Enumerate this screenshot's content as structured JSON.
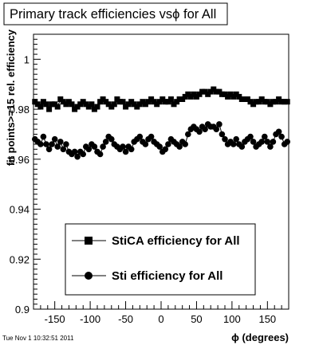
{
  "title": "Primary track efficiencies vsϕ for All",
  "timestamp": "Tue Nov  1 10:32:51 2011",
  "chart_data": {
    "type": "scatter",
    "title": "Primary track efficiencies vsϕ for All",
    "xlabel": "ϕ (degrees)",
    "ylabel": "fit points>=15 rel. efficiency",
    "xlim": [
      -180,
      180
    ],
    "ylim": [
      0.9,
      1.01
    ],
    "xticks": [
      -150,
      -100,
      -50,
      0,
      50,
      100,
      150
    ],
    "xtick_labels": [
      "-150",
      "-100",
      "-50",
      "0",
      "50",
      "100",
      "150"
    ],
    "yticks": [
      0.9,
      0.92,
      0.94,
      0.96,
      0.98,
      1.0
    ],
    "ytick_labels": [
      "0.9",
      "0.92",
      "0.94",
      "0.96",
      "0.98",
      "1"
    ],
    "grid": false,
    "legend_position": "bottom-center",
    "x": [
      -178,
      -174,
      -170,
      -166,
      -162,
      -158,
      -154,
      -150,
      -146,
      -142,
      -138,
      -134,
      -130,
      -126,
      -122,
      -118,
      -114,
      -110,
      -106,
      -102,
      -98,
      -94,
      -90,
      -86,
      -82,
      -78,
      -74,
      -70,
      -66,
      -62,
      -58,
      -54,
      -50,
      -46,
      -42,
      -38,
      -34,
      -30,
      -26,
      -22,
      -18,
      -14,
      -10,
      -6,
      -2,
      2,
      6,
      10,
      14,
      18,
      22,
      26,
      30,
      34,
      38,
      42,
      46,
      50,
      54,
      58,
      62,
      66,
      70,
      74,
      78,
      82,
      86,
      90,
      94,
      98,
      102,
      106,
      110,
      114,
      118,
      122,
      126,
      130,
      134,
      138,
      142,
      146,
      150,
      154,
      158,
      162,
      166,
      170,
      174,
      178
    ],
    "series": [
      {
        "name": "StiCA efficiency  for All",
        "marker": "square",
        "color": "#000000",
        "values": [
          0.983,
          0.982,
          0.981,
          0.983,
          0.982,
          0.98,
          0.982,
          0.982,
          0.981,
          0.984,
          0.983,
          0.982,
          0.983,
          0.982,
          0.98,
          0.981,
          0.982,
          0.983,
          0.982,
          0.981,
          0.982,
          0.98,
          0.981,
          0.983,
          0.984,
          0.983,
          0.982,
          0.981,
          0.982,
          0.984,
          0.983,
          0.983,
          0.981,
          0.982,
          0.983,
          0.982,
          0.981,
          0.982,
          0.983,
          0.982,
          0.983,
          0.984,
          0.983,
          0.982,
          0.983,
          0.984,
          0.983,
          0.983,
          0.984,
          0.982,
          0.983,
          0.984,
          0.984,
          0.985,
          0.986,
          0.985,
          0.986,
          0.985,
          0.986,
          0.987,
          0.987,
          0.986,
          0.987,
          0.988,
          0.987,
          0.987,
          0.986,
          0.986,
          0.985,
          0.986,
          0.985,
          0.986,
          0.985,
          0.984,
          0.984,
          0.984,
          0.983,
          0.982,
          0.983,
          0.983,
          0.984,
          0.983,
          0.983,
          0.982,
          0.983,
          0.983,
          0.984,
          0.983,
          0.983,
          0.983
        ]
      },
      {
        "name": "Sti efficiency  for All",
        "marker": "circle",
        "color": "#000000",
        "values": [
          0.968,
          0.967,
          0.966,
          0.969,
          0.966,
          0.964,
          0.966,
          0.968,
          0.965,
          0.967,
          0.964,
          0.966,
          0.963,
          0.962,
          0.963,
          0.961,
          0.963,
          0.962,
          0.965,
          0.964,
          0.966,
          0.965,
          0.963,
          0.962,
          0.965,
          0.967,
          0.969,
          0.968,
          0.966,
          0.965,
          0.964,
          0.965,
          0.963,
          0.965,
          0.964,
          0.967,
          0.968,
          0.969,
          0.967,
          0.966,
          0.968,
          0.969,
          0.967,
          0.966,
          0.965,
          0.963,
          0.964,
          0.966,
          0.968,
          0.967,
          0.966,
          0.965,
          0.967,
          0.966,
          0.97,
          0.972,
          0.973,
          0.972,
          0.971,
          0.973,
          0.972,
          0.974,
          0.973,
          0.973,
          0.972,
          0.974,
          0.97,
          0.968,
          0.966,
          0.967,
          0.966,
          0.968,
          0.966,
          0.965,
          0.967,
          0.968,
          0.969,
          0.967,
          0.965,
          0.966,
          0.967,
          0.969,
          0.967,
          0.965,
          0.967,
          0.97,
          0.971,
          0.969,
          0.966,
          0.967
        ]
      }
    ]
  }
}
